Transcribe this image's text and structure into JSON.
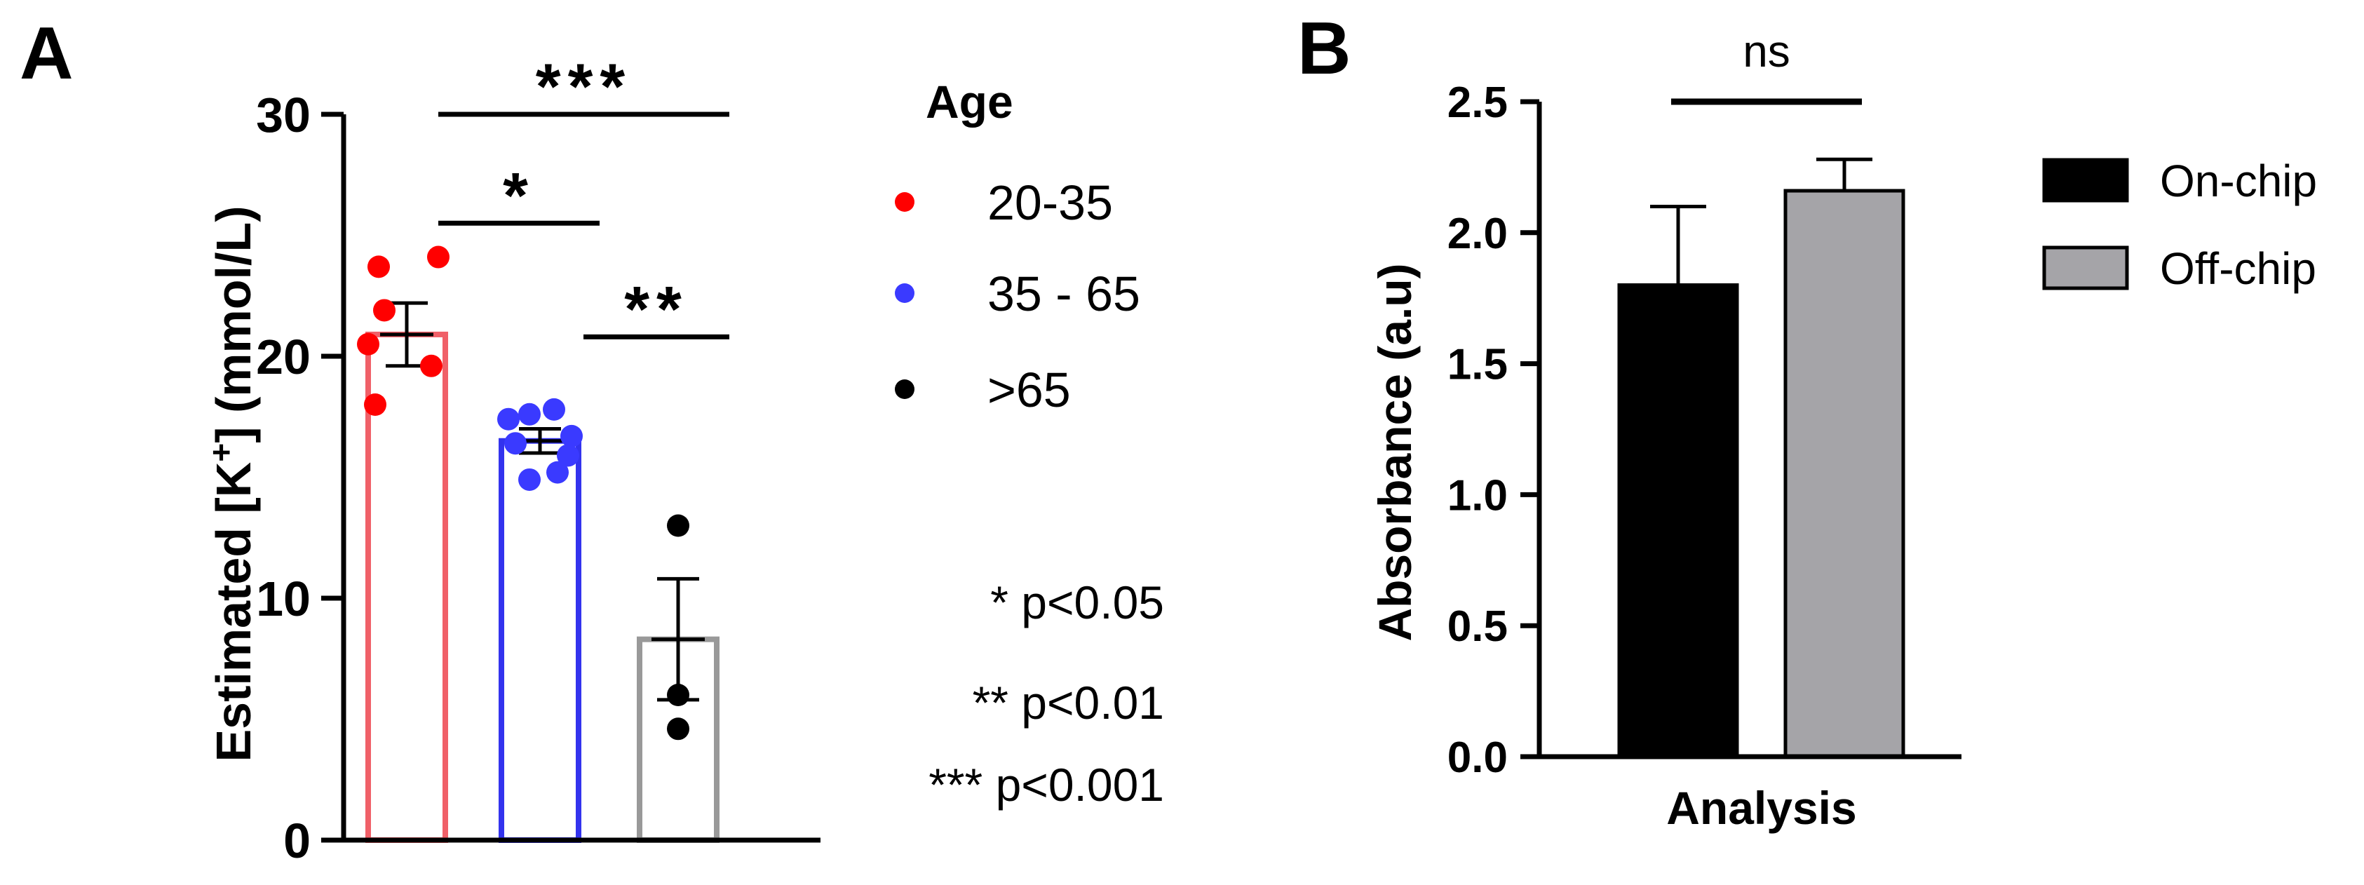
{
  "panels": {
    "a": {
      "label": "A"
    },
    "b": {
      "label": "B"
    }
  },
  "chart_data": [
    {
      "type": "bar",
      "panel": "A",
      "ylabel_prefix": "Estimated [K",
      "ylabel_sup": "+",
      "ylabel_suffix": "] (mmol/L)",
      "xlabel": "",
      "ylim": [
        0,
        30
      ],
      "yticks": [
        0,
        10,
        20,
        30
      ],
      "ytick_labels": [
        "0",
        "10",
        "20",
        "30"
      ],
      "legend_title": "Age",
      "legend_position": "right",
      "grid": false,
      "bar_style": "hollow",
      "categories": [
        "20-35",
        "35 - 65",
        ">65"
      ],
      "series": [
        {
          "name": "20-35",
          "color": "#f06068",
          "point_color": "#ff0000",
          "mean": 20.9,
          "sem": 1.3,
          "points": [
            23.7,
            24.1,
            21.9,
            20.5,
            19.6,
            18.0
          ]
        },
        {
          "name": "35 - 65",
          "color": "#3333ee",
          "point_color": "#3a3aff",
          "mean": 16.5,
          "sem": 0.5,
          "points": [
            17.4,
            17.6,
            17.8,
            16.7,
            16.4,
            15.9,
            14.9,
            15.2
          ]
        },
        {
          "name": ">65",
          "color": "#999999",
          "point_color": "#000000",
          "mean": 8.3,
          "sem": 2.5,
          "points": [
            13.0,
            6.0,
            4.6
          ]
        }
      ],
      "significance": [
        {
          "from": 0,
          "to": 2,
          "y": 30.0,
          "label": "***"
        },
        {
          "from": 0,
          "to": 1,
          "y": 25.5,
          "label": "*"
        },
        {
          "from": 1,
          "to": 2,
          "y": 20.8,
          "label": "**"
        }
      ],
      "annotations": [
        "* p<0.05",
        "** p<0.01",
        "*** p<0.001"
      ]
    },
    {
      "type": "bar",
      "panel": "B",
      "ylabel": "Absorbance (a.u)",
      "xlabel": "Analysis",
      "ylim": [
        0,
        2.5
      ],
      "yticks": [
        0.0,
        0.5,
        1.0,
        1.5,
        2.0,
        2.5
      ],
      "ytick_labels": [
        "0.0",
        "0.5",
        "1.0",
        "1.5",
        "2.0",
        "2.5"
      ],
      "legend_position": "right",
      "grid": false,
      "series": [
        {
          "name": "On-chip",
          "color": "#000000",
          "value": 1.8,
          "error": 0.3
        },
        {
          "name": "Off-chip",
          "color": "#a5a4a8",
          "value": 2.16,
          "error": 0.12
        }
      ],
      "significance": [
        {
          "from": 0,
          "to": 1,
          "y": 2.55,
          "label": "ns"
        }
      ]
    }
  ]
}
